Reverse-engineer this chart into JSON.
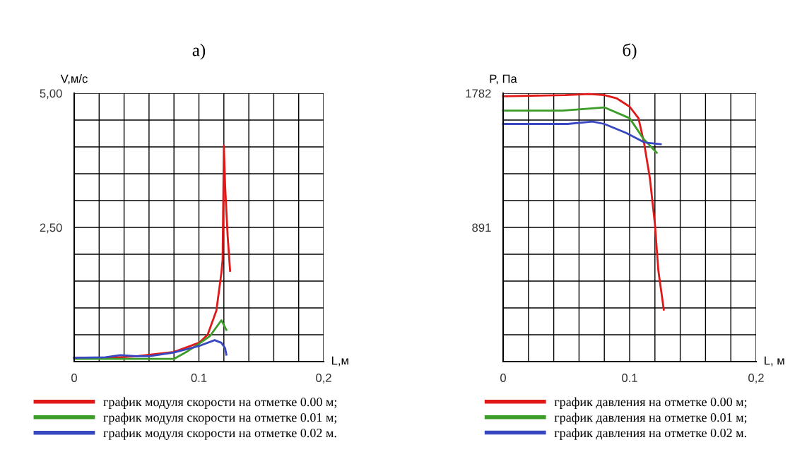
{
  "chart_data": [
    {
      "type": "line",
      "title": "а)",
      "xlabel": "L,м",
      "ylabel": "V,м/с",
      "grid": true,
      "legend": "bottom",
      "marker": "none",
      "line_style": "solid",
      "xlim": [
        0,
        0.2
      ],
      "ylim": [
        0,
        5
      ],
      "xticks": [
        0,
        {
          "value": 0.02,
          "label": null
        },
        {
          "value": 0.04,
          "label": null
        },
        {
          "value": 0.06,
          "label": null
        },
        {
          "value": 0.08,
          "label": null
        },
        {
          "value": 0.1,
          "label": "0.1"
        },
        {
          "value": 0.12,
          "label": null
        },
        {
          "value": 0.14,
          "label": null
        },
        {
          "value": 0.16,
          "label": null
        },
        {
          "value": 0.18,
          "label": null
        },
        {
          "value": 0.2,
          "label": "0,2"
        }
      ],
      "yticks": [
        {
          "value": 0,
          "label": null
        },
        {
          "value": 0.5,
          "label": null
        },
        {
          "value": 1,
          "label": null
        },
        {
          "value": 1.5,
          "label": null
        },
        {
          "value": 2,
          "label": null
        },
        {
          "value": 2.5,
          "label": "2,50"
        },
        {
          "value": 3,
          "label": null
        },
        {
          "value": 3.5,
          "label": null
        },
        {
          "value": 4,
          "label": null
        },
        {
          "value": 4.5,
          "label": null
        },
        {
          "value": 5,
          "label": "5,00"
        }
      ],
      "series": [
        {
          "name": "график модуля скорости на отметке 0.00 м;",
          "color": "#e01818",
          "x": [
            0,
            0.03,
            0.05,
            0.08,
            0.1,
            0.107,
            0.114,
            0.118,
            0.119,
            0.12,
            0.121,
            0.123,
            0.125
          ],
          "values": [
            0.07,
            0.07,
            0.1,
            0.18,
            0.35,
            0.5,
            0.95,
            1.65,
            1.9,
            4.02,
            3.28,
            2.35,
            1.69
          ]
        },
        {
          "name": "график модуля скорости на отметке 0.01 м;",
          "color": "#3c9c28",
          "x": [
            0,
            0.04,
            0.08,
            0.09,
            0.1,
            0.109,
            0.118,
            0.122
          ],
          "values": [
            0.05,
            0.05,
            0.05,
            0.18,
            0.33,
            0.48,
            0.77,
            0.59
          ]
        },
        {
          "name": "график модуля скорости на отметке 0.02 м.",
          "color": "#3848c0",
          "x": [
            0,
            0.025,
            0.037,
            0.05,
            0.06,
            0.08,
            0.1,
            0.1126,
            0.118,
            0.121,
            0.122
          ],
          "values": [
            0.07,
            0.08,
            0.12,
            0.1,
            0.1,
            0.17,
            0.29,
            0.4,
            0.35,
            0.25,
            0.13
          ]
        }
      ]
    },
    {
      "type": "line",
      "title": "б)",
      "xlabel": "L, м",
      "ylabel": "P, Па",
      "grid": true,
      "legend": "bottom",
      "marker": "none",
      "line_style": "solid",
      "xlim": [
        0,
        0.2
      ],
      "ylim": [
        0,
        1782
      ],
      "xticks": [
        0,
        {
          "value": 0.02,
          "label": null
        },
        {
          "value": 0.04,
          "label": null
        },
        {
          "value": 0.06,
          "label": null
        },
        {
          "value": 0.08,
          "label": null
        },
        {
          "value": 0.1,
          "label": "0.1"
        },
        {
          "value": 0.12,
          "label": null
        },
        {
          "value": 0.14,
          "label": null
        },
        {
          "value": 0.16,
          "label": null
        },
        {
          "value": 0.18,
          "label": null
        },
        {
          "value": 0.2,
          "label": "0,2"
        }
      ],
      "yticks": [
        {
          "value": 0,
          "label": null
        },
        {
          "value": 178.2,
          "label": null
        },
        {
          "value": 356.4,
          "label": null
        },
        {
          "value": 534.6,
          "label": null
        },
        {
          "value": 712.8,
          "label": null
        },
        891,
        {
          "value": 1069.2,
          "label": null
        },
        {
          "value": 1247.4,
          "label": null
        },
        {
          "value": 1425.6,
          "label": null
        },
        {
          "value": 1603.8,
          "label": null
        },
        1782
      ],
      "series": [
        {
          "name": "график давления на отметке 0.00 м;",
          "color": "#e01818",
          "x": [
            0,
            0.049,
            0.068,
            0.08,
            0.09,
            0.1,
            0.107,
            0.1115,
            0.116,
            0.12,
            0.1227,
            0.127
          ],
          "values": [
            1762,
            1770,
            1777,
            1770,
            1747,
            1693,
            1616,
            1448,
            1218,
            912,
            605,
            345
          ]
        },
        {
          "name": "график давления на отметке 0.01 м;",
          "color": "#3c9c28",
          "x": [
            0,
            0.047,
            0.08,
            0.1,
            0.111,
            0.1214
          ],
          "values": [
            1667,
            1667,
            1688,
            1616,
            1479,
            1387
          ]
        },
        {
          "name": "график давления на отметке 0.02 м.",
          "color": "#3848c0",
          "x": [
            0,
            0.051,
            0.0706,
            0.08,
            0.0976,
            0.1115,
            0.1246
          ],
          "values": [
            1578,
            1578,
            1594,
            1578,
            1517,
            1456,
            1443
          ]
        }
      ]
    }
  ]
}
